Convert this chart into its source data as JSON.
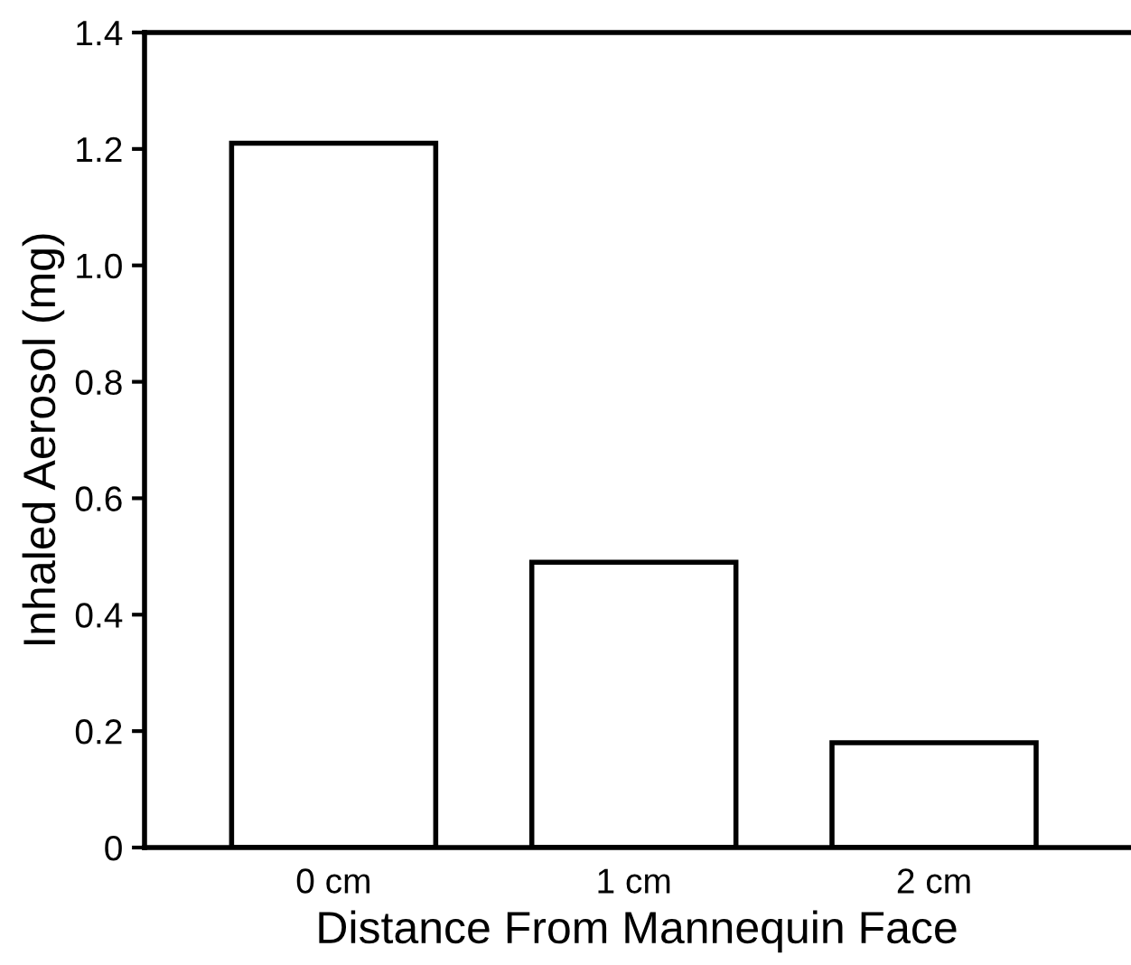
{
  "chart_data": {
    "type": "bar",
    "xlabel": "Distance From Mannequin Face",
    "ylabel": "Inhaled Aerosol (mg)",
    "categories": [
      "0 cm",
      "1 cm",
      "2 cm"
    ],
    "values": [
      1.21,
      0.49,
      0.18
    ],
    "color": "#ffffff",
    "ylim": [
      0,
      1.4
    ],
    "yticks": [
      {
        "value": 0,
        "label": "0"
      },
      0.2,
      0.4,
      0.6,
      0.8,
      {
        "value": 1.0,
        "label": "1.0"
      },
      1.2,
      1.4
    ],
    "grid": false,
    "legend": false
  }
}
